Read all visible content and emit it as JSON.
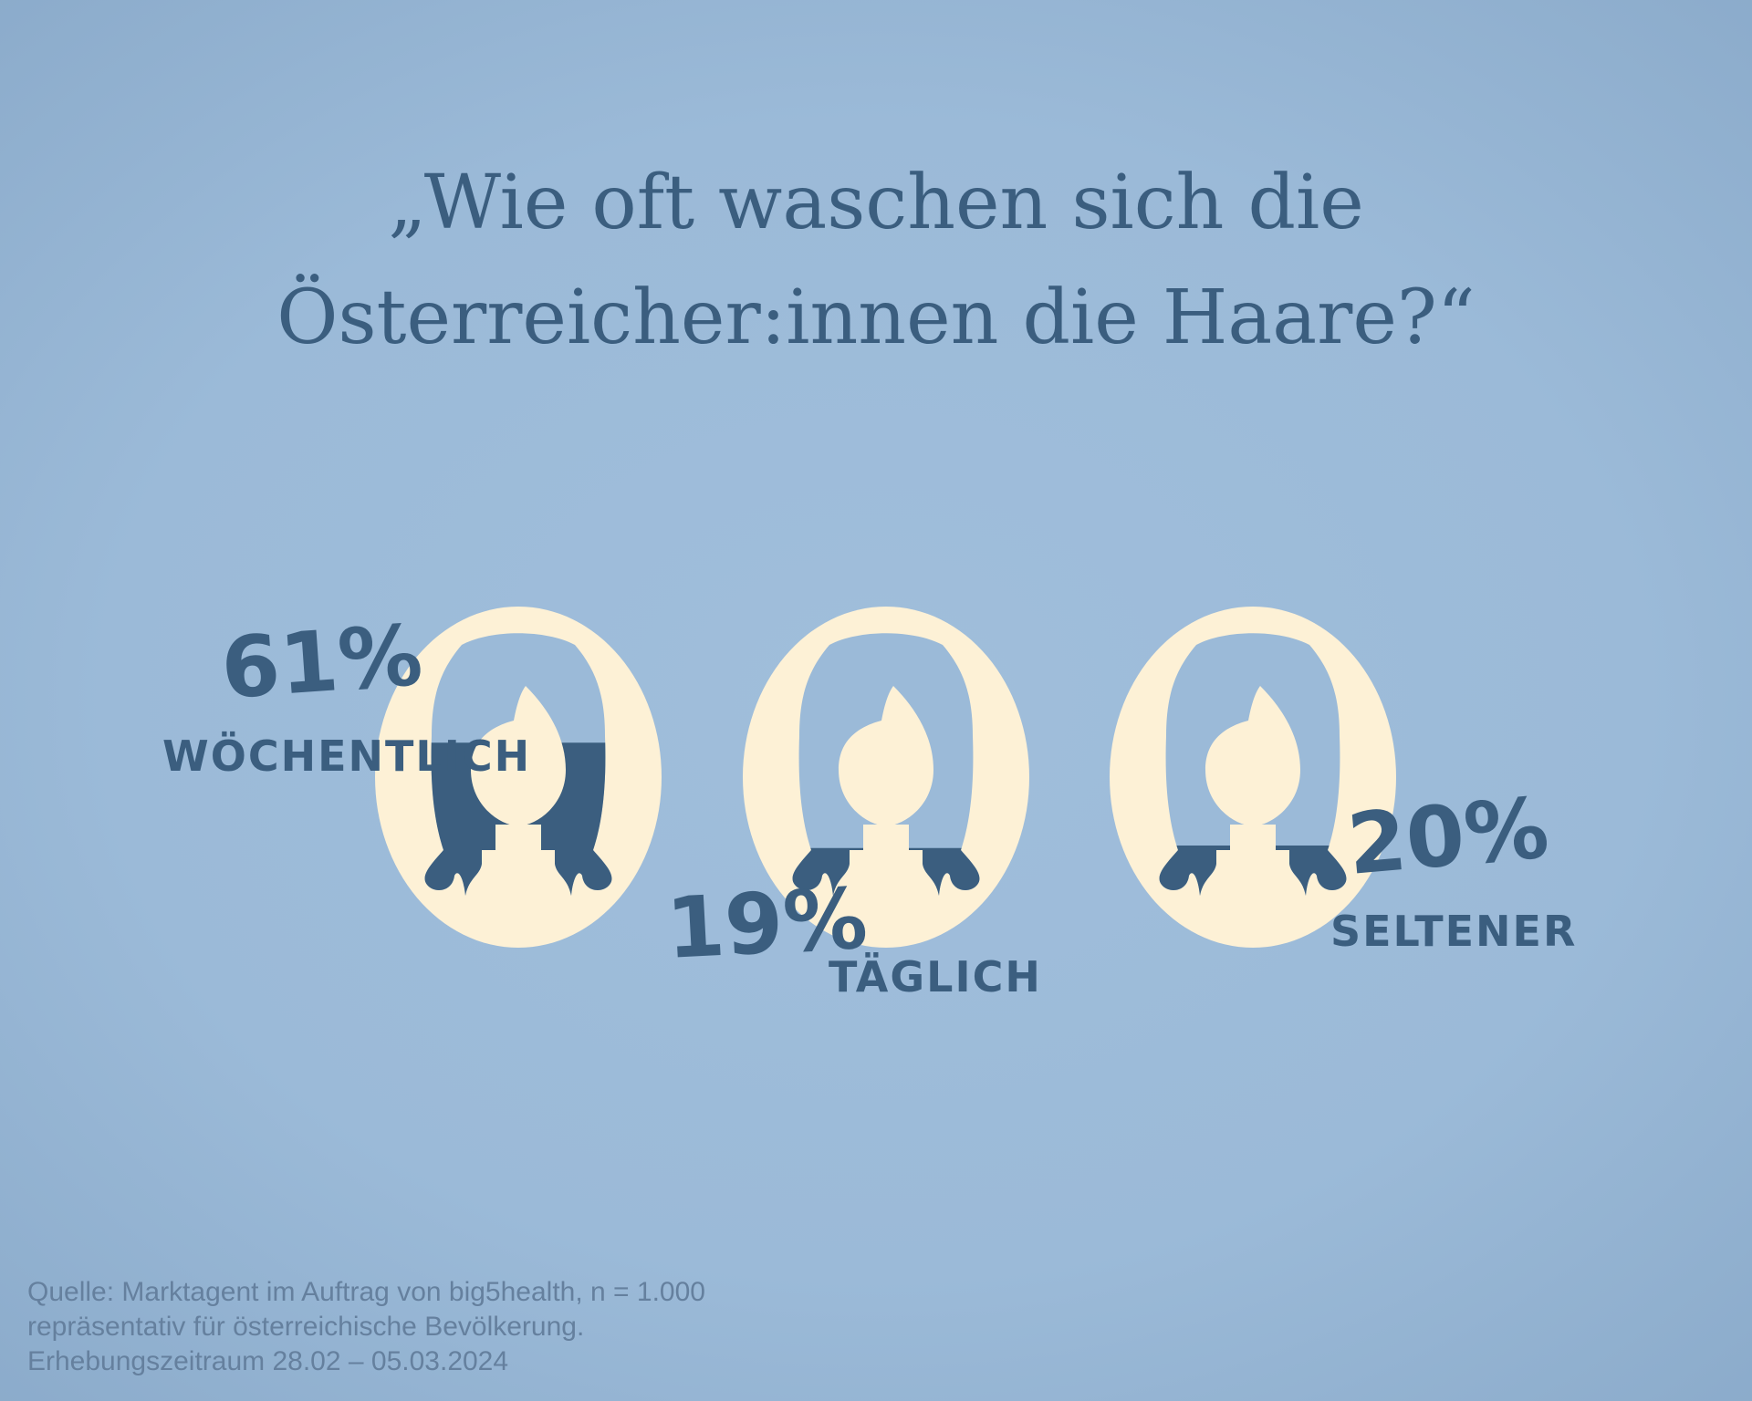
{
  "title": {
    "line1": "„Wie oft waschen sich die",
    "line2": "Österreicher:innen die Haare?“"
  },
  "colors": {
    "background": "#9bbad8",
    "text": "#3b5e7f",
    "cream": "#fdf1d6",
    "source_text": "#65809e"
  },
  "chart_data": {
    "type": "pictogram",
    "title": "„Wie oft waschen sich die Österreicher:innen die Haare?“",
    "categories": [
      "wöchentlich",
      "täglich",
      "seltener"
    ],
    "values": [
      61,
      19,
      20
    ],
    "unit": "%",
    "labels": [
      {
        "value": "61%",
        "category": "WÖCHENTLICH"
      },
      {
        "value": "19%",
        "category": "TÄGLICH"
      },
      {
        "value": "20%",
        "category": "SELTENER"
      }
    ]
  },
  "source": {
    "line1": "Quelle: Marktagent im Auftrag von big5health, n = 1.000",
    "line2": "repräsentativ für österreichische Bevölkerung.",
    "line3": "Erhebungszeitraum 28.02 – 05.03.2024"
  }
}
